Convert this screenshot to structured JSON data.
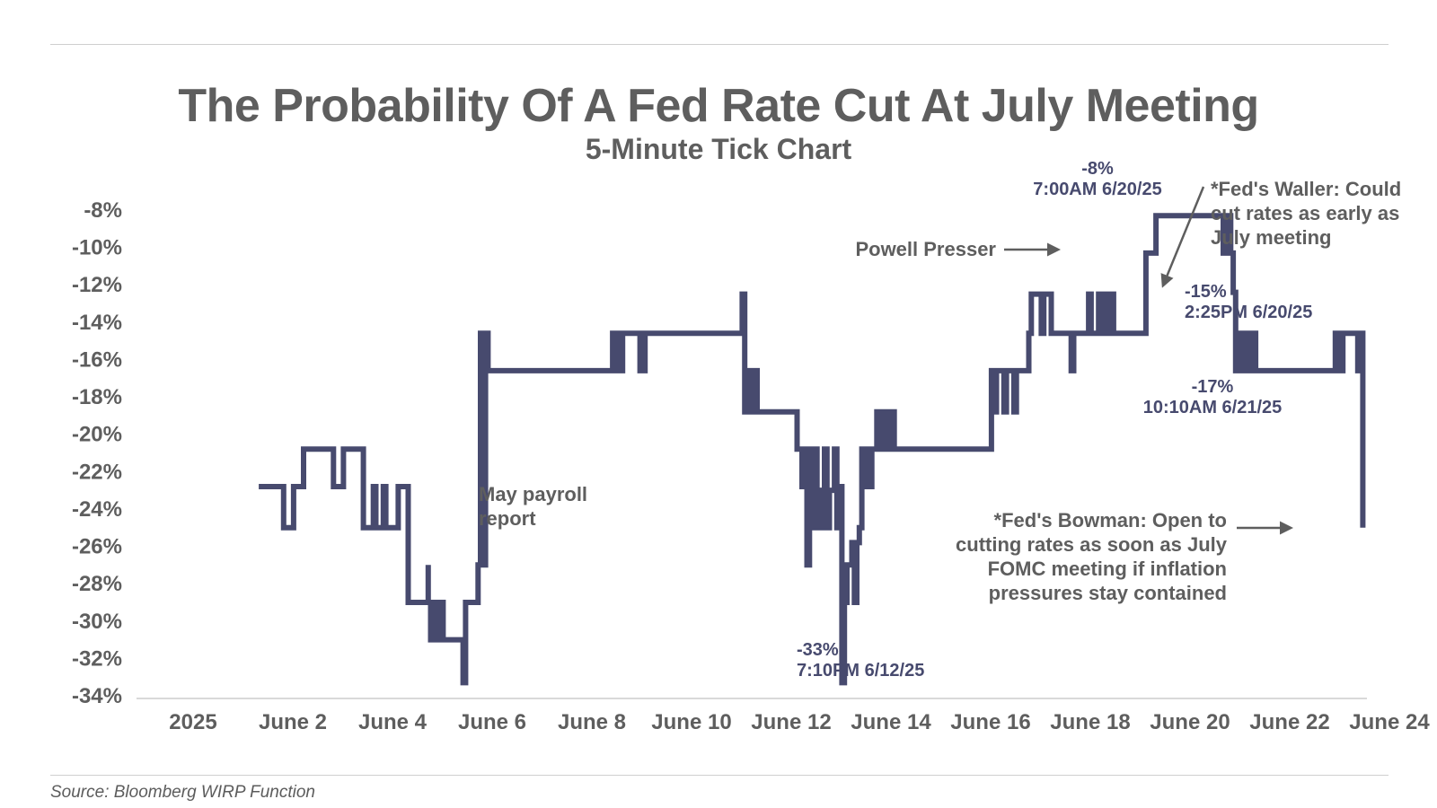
{
  "colors": {
    "line": "#474a6e",
    "text": "#5e5e5e",
    "arrow": "#5e5e5e",
    "axis": "#d9d9d9"
  },
  "source": "Source: Bloomberg WIRP Function",
  "chart_data": {
    "type": "line",
    "title": "The Probability Of A Fed Rate Cut At July Meeting",
    "subtitle": "5-Minute Tick Chart",
    "xlabel": "",
    "ylabel": "",
    "xlim": [
      0,
      23.3
    ],
    "ylim": [
      -34,
      -8
    ],
    "grid": false,
    "x_tick_values": [
      0,
      2,
      4,
      6,
      8,
      10,
      12,
      14,
      16,
      18,
      20,
      22,
      24
    ],
    "x_tick_labels": [
      "2025",
      "June 2",
      "June 4",
      "June 6",
      "June 8",
      "June 10",
      "June 12",
      "June 14",
      "June 16",
      "June 18",
      "June 20",
      "June 22",
      "June 24"
    ],
    "y_ticks": [
      -8,
      -10,
      -12,
      -14,
      -16,
      -18,
      -20,
      -22,
      -24,
      -26,
      -28,
      -30,
      -32,
      -34
    ],
    "y_tick_labels": [
      "-8%",
      "-10%",
      "-12%",
      "-14%",
      "-16%",
      "-18%",
      "-20%",
      "-22%",
      "-24%",
      "-26%",
      "-28%",
      "-30%",
      "-32%",
      "-34%"
    ],
    "series": [
      {
        "step": true,
        "x": [
          1.1,
          1.6,
          1.8,
          2.0,
          2.6,
          2.8,
          3.2,
          3.4,
          3.45,
          3.6,
          3.65,
          3.9,
          4.1,
          4.5,
          4.5,
          4.55,
          4.65,
          4.7,
          4.75,
          4.8,
          5.2,
          5.25,
          5.5,
          5.55,
          5.6,
          5.6,
          5.65,
          5.7,
          8.2,
          8.3,
          8.4,
          8.75,
          8.85,
          9.0,
          10.8,
          10.85,
          10.9,
          10.95,
          11.05,
          11.1,
          11.9,
          12.0,
          12.05,
          12.1,
          12.15,
          12.2,
          12.25,
          12.3,
          12.4,
          12.45,
          12.5,
          12.55,
          12.65,
          12.7,
          12.75,
          12.8,
          12.85,
          12.9,
          13.0,
          13.05,
          13.1,
          13.15,
          13.2,
          13.3,
          13.4,
          13.45,
          13.5,
          13.55,
          13.6,
          13.65,
          13.7,
          13.75,
          13.8,
          13.85,
          13.9,
          15.8,
          15.85,
          15.9,
          16.05,
          16.1,
          16.25,
          16.3,
          16.55,
          16.6,
          16.8,
          16.85,
          17.0,
          17.4,
          17.45,
          17.55,
          17.75,
          17.8,
          17.95,
          18.05,
          18.15,
          18.25,
          18.3,
          18.9,
          19.1,
          19.65,
          20.45,
          20.55,
          20.6,
          20.65,
          20.7,
          20.75,
          20.8,
          20.9,
          21.0,
          21.05,
          21.1,
          21.25,
          22.7,
          22.75,
          22.85,
          22.9,
          23.15,
          23.2,
          23.25
        ],
        "y": [
          -22.8,
          -25.0,
          -22.8,
          -20.8,
          -22.8,
          -20.8,
          -25.0,
          -22.8,
          -25.0,
          -22.8,
          -25.0,
          -22.8,
          -29.0,
          -27.0,
          -29.0,
          -31.0,
          -29.0,
          -31.0,
          -29.0,
          -31.0,
          -33.3,
          -29.0,
          -27.0,
          -14.6,
          -16.6,
          -27.0,
          -14.6,
          -16.6,
          -14.6,
          -16.6,
          -14.6,
          -16.6,
          -14.6,
          -14.6,
          -12.5,
          -18.8,
          -16.6,
          -18.8,
          -16.6,
          -18.8,
          -20.8,
          -22.8,
          -20.8,
          -27.0,
          -20.8,
          -25.0,
          -20.8,
          -25.0,
          -23.0,
          -20.8,
          -25.0,
          -23.0,
          -20.8,
          -25.0,
          -22.8,
          -33.3,
          -29.0,
          -27.0,
          -25.8,
          -29.0,
          -25.8,
          -25.0,
          -20.8,
          -22.8,
          -20.8,
          -20.8,
          -18.8,
          -20.8,
          -18.8,
          -20.8,
          -18.8,
          -20.8,
          -18.8,
          -20.8,
          -20.8,
          -16.6,
          -18.8,
          -16.6,
          -18.8,
          -16.6,
          -18.8,
          -16.6,
          -14.6,
          -12.5,
          -14.6,
          -12.5,
          -14.6,
          -16.6,
          -14.6,
          -14.6,
          -12.5,
          -14.6,
          -12.5,
          -14.6,
          -12.5,
          -14.6,
          -14.6,
          -10.3,
          -8.3,
          -8.3,
          -10.3,
          -8.3,
          -10.3,
          -12.4,
          -16.6,
          -14.6,
          -16.6,
          -14.6,
          -16.6,
          -14.6,
          -16.6,
          -16.6,
          -14.6,
          -16.6,
          -14.6,
          -14.6,
          -16.6,
          -14.6,
          -25.0
        ]
      }
    ],
    "annotations": [
      {
        "id": "powell",
        "text": [
          "Powell Presser"
        ],
        "x": 18.15,
        "y": -10.0
      },
      {
        "id": "peak",
        "text": [
          "-8%",
          "7:00AM 6/20/25"
        ],
        "x": 19.8,
        "y": -8.3
      },
      {
        "id": "waller",
        "text": [
          "*Fed's Waller: Could",
          "cut rates as early as",
          "July meeting"
        ],
        "x": 20.5,
        "y": -12.4
      },
      {
        "id": "m15",
        "text": [
          "-15%",
          "2:25PM 6/20/25"
        ],
        "x": 20.5,
        "y": -14.6
      },
      {
        "id": "m17",
        "text": [
          "-17%",
          "10:10AM 6/21/25"
        ],
        "x": 21.1,
        "y": -16.6
      },
      {
        "id": "payroll",
        "text": [
          "May payroll",
          "report"
        ],
        "x": 5.6,
        "y": -24.0
      },
      {
        "id": "low",
        "text": [
          "-33%",
          "7:10PM 6/12/25"
        ],
        "x": 12.8,
        "y": -33.3
      },
      {
        "id": "bowman",
        "text": [
          "*Fed's Bowman: Open to",
          "cutting rates as soon as July",
          "FOMC meeting if inflation",
          "pressures stay contained"
        ],
        "x": 23.25,
        "y": -25.0
      }
    ]
  }
}
